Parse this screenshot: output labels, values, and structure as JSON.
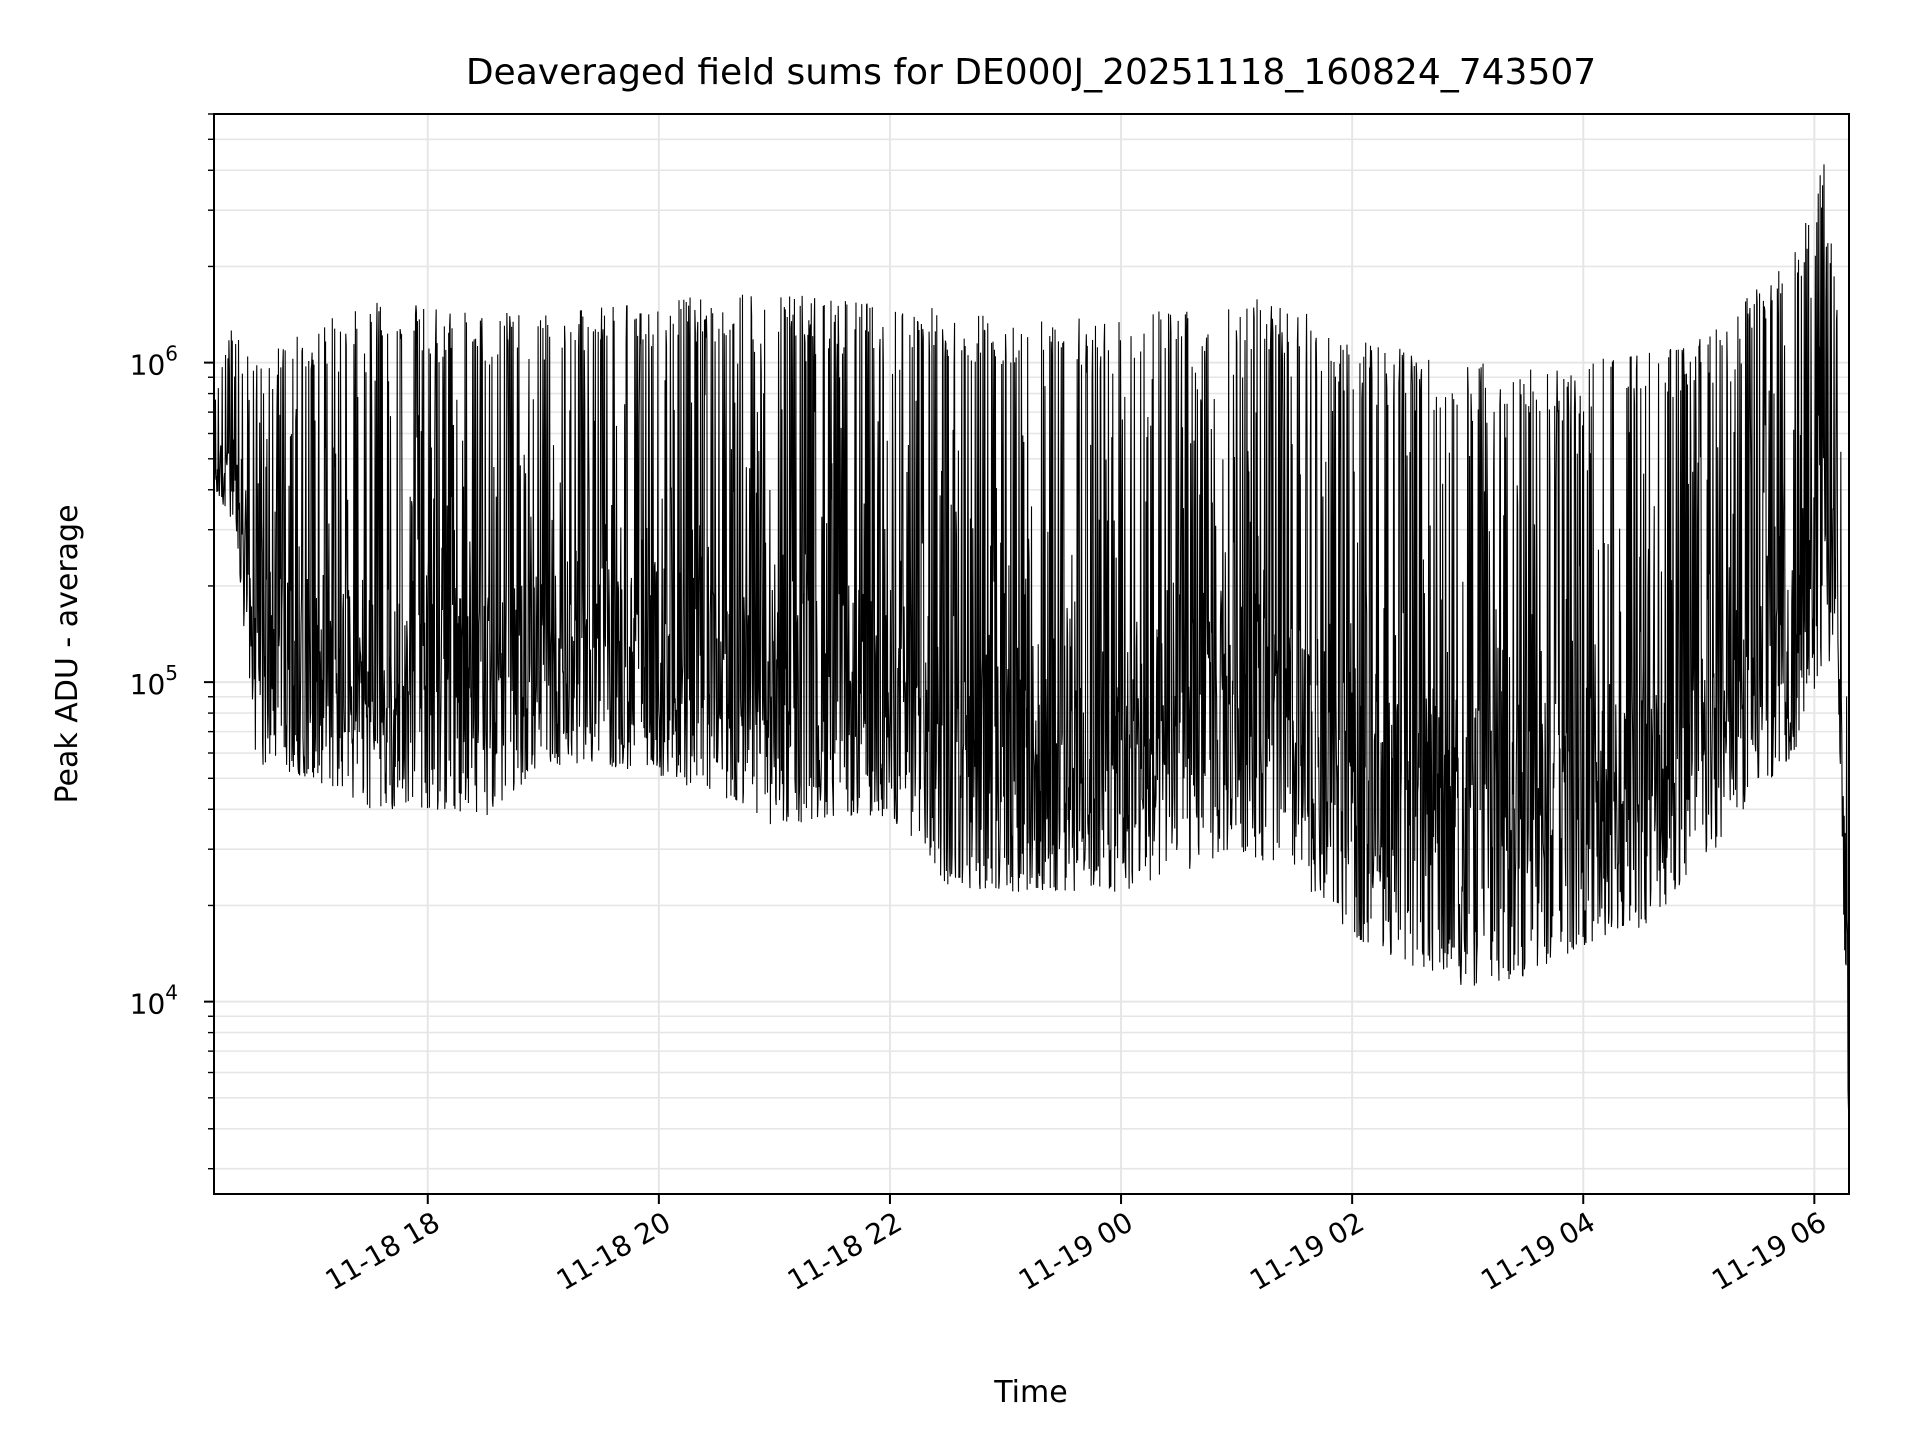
{
  "chart_data": {
    "type": "line",
    "title": "Deaveraged field sums for DE000J_20251118_160824_743507",
    "xlabel": "Time",
    "ylabel": "Peak ADU - average",
    "yscale": "log",
    "xlim": [
      "2025-11-18 16:09",
      "2025-11-19 06:18"
    ],
    "ylim": [
      2500,
      6000000
    ],
    "grid": true,
    "x_ticks": [
      {
        "t": "2025-11-18 18:00",
        "label": "11-18 18"
      },
      {
        "t": "2025-11-18 20:00",
        "label": "11-18 20"
      },
      {
        "t": "2025-11-18 22:00",
        "label": "11-18 22"
      },
      {
        "t": "2025-11-19 00:00",
        "label": "11-19 00"
      },
      {
        "t": "2025-11-19 02:00",
        "label": "11-19 02"
      },
      {
        "t": "2025-11-19 04:00",
        "label": "11-19 04"
      },
      {
        "t": "2025-11-19 06:00",
        "label": "11-19 06"
      }
    ],
    "y_ticks": [
      {
        "v": 10000,
        "base": "10",
        "exp": "4"
      },
      {
        "v": 100000,
        "base": "10",
        "exp": "5"
      },
      {
        "v": 1000000,
        "base": "10",
        "exp": "6"
      }
    ],
    "line_color": "#000000",
    "grid_color": "#e6e6e6",
    "series": [
      {
        "envelope": [
          {
            "t": "2025-11-18 16:09",
            "low": 400000,
            "high": 800000
          },
          {
            "t": "2025-11-18 16:20",
            "low": 300000,
            "high": 1400000
          },
          {
            "t": "2025-11-18 16:30",
            "low": 55000,
            "high": 1000000
          },
          {
            "t": "2025-11-18 17:00",
            "low": 50000,
            "high": 1300000
          },
          {
            "t": "2025-11-18 17:30",
            "low": 40000,
            "high": 1600000
          },
          {
            "t": "2025-11-18 18:00",
            "low": 40000,
            "high": 1500000
          },
          {
            "t": "2025-11-18 18:30",
            "low": 38000,
            "high": 1450000
          },
          {
            "t": "2025-11-18 19:00",
            "low": 55000,
            "high": 1400000
          },
          {
            "t": "2025-11-18 19:30",
            "low": 55000,
            "high": 1500000
          },
          {
            "t": "2025-11-18 20:00",
            "low": 50000,
            "high": 1600000
          },
          {
            "t": "2025-11-18 20:30",
            "low": 45000,
            "high": 1600000
          },
          {
            "t": "2025-11-18 21:00",
            "low": 35000,
            "high": 1700000
          },
          {
            "t": "2025-11-18 21:30",
            "low": 38000,
            "high": 1600000
          },
          {
            "t": "2025-11-18 22:00",
            "low": 38000,
            "high": 1500000
          },
          {
            "t": "2025-11-18 22:30",
            "low": 23000,
            "high": 1500000
          },
          {
            "t": "2025-11-18 23:00",
            "low": 22000,
            "high": 1400000
          },
          {
            "t": "2025-11-18 23:30",
            "low": 22000,
            "high": 1400000
          },
          {
            "t": "2025-11-19 00:00",
            "low": 22000,
            "high": 1400000
          },
          {
            "t": "2025-11-19 00:30",
            "low": 25000,
            "high": 1500000
          },
          {
            "t": "2025-11-19 01:00",
            "low": 30000,
            "high": 1700000
          },
          {
            "t": "2025-11-19 01:30",
            "low": 25000,
            "high": 1500000
          },
          {
            "t": "2025-11-19 02:00",
            "low": 16000,
            "high": 1200000
          },
          {
            "t": "2025-11-19 02:30",
            "low": 13000,
            "high": 1100000
          },
          {
            "t": "2025-11-19 03:00",
            "low": 11000,
            "high": 1000000
          },
          {
            "t": "2025-11-19 03:30",
            "low": 12000,
            "high": 1000000
          },
          {
            "t": "2025-11-19 04:00",
            "low": 15000,
            "high": 1000000
          },
          {
            "t": "2025-11-19 04:30",
            "low": 17000,
            "high": 1100000
          },
          {
            "t": "2025-11-19 05:00",
            "low": 25000,
            "high": 1200000
          },
          {
            "t": "2025-11-19 05:30",
            "low": 45000,
            "high": 1700000
          },
          {
            "t": "2025-11-19 05:50",
            "low": 60000,
            "high": 2500000
          },
          {
            "t": "2025-11-19 06:05",
            "low": 120000,
            "high": 4500000
          },
          {
            "t": "2025-11-19 06:12",
            "low": 100000,
            "high": 1500000
          },
          {
            "t": "2025-11-19 06:18",
            "low": 3500,
            "high": 60000
          }
        ]
      }
    ]
  }
}
